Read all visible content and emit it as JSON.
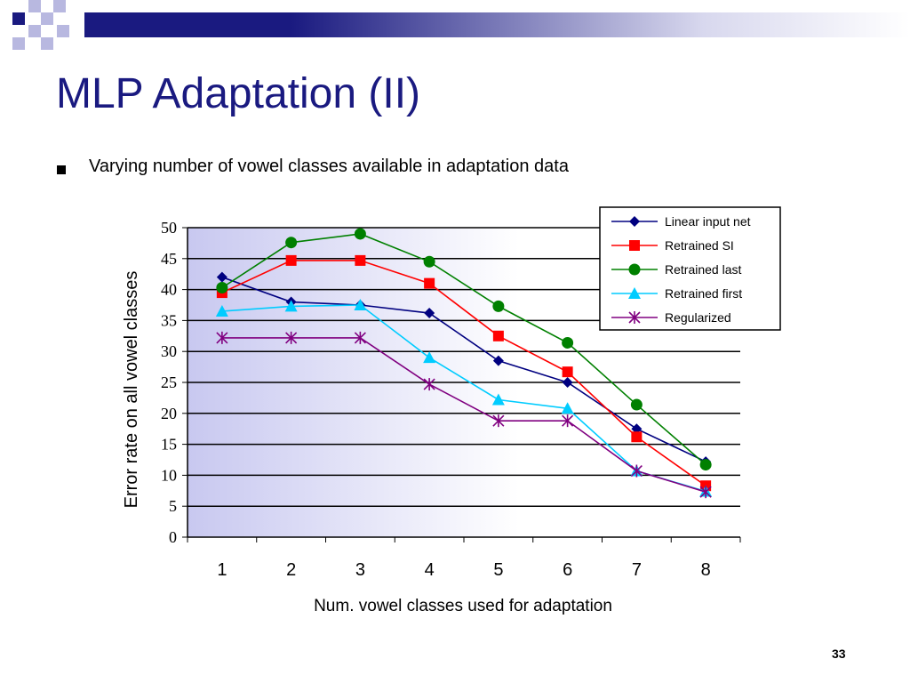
{
  "slide": {
    "title": "MLP Adaptation (II)",
    "bullet": "Varying number of vowel classes available in adaptation data",
    "page_number": "33"
  },
  "colors": {
    "title": "#1a1a80",
    "decor_navy": "#1a1a80",
    "decor_light": "#b8b8e0"
  },
  "chart_data": {
    "type": "line",
    "xlabel": "Num. vowel classes used for adaptation",
    "ylabel": "Error rate on all vowel classes",
    "categories": [
      "1",
      "2",
      "3",
      "4",
      "5",
      "6",
      "7",
      "8"
    ],
    "ylim": [
      0,
      50
    ],
    "yticks": [
      "0",
      "5",
      "10",
      "15",
      "20",
      "25",
      "30",
      "35",
      "40",
      "45",
      "50"
    ],
    "grid": true,
    "legend_position": "top-right",
    "series": [
      {
        "name": "Linear input net",
        "color": "#000080",
        "marker": "diamond",
        "values": [
          42.0,
          38.0,
          37.5,
          36.2,
          28.5,
          25.0,
          17.5,
          12.2
        ]
      },
      {
        "name": "Retrained SI",
        "color": "#ff0000",
        "marker": "square",
        "values": [
          39.5,
          44.7,
          44.7,
          41.0,
          32.5,
          26.7,
          16.2,
          8.3
        ]
      },
      {
        "name": "Retrained last",
        "color": "#008000",
        "marker": "circle",
        "values": [
          40.3,
          47.6,
          49.0,
          44.5,
          37.3,
          31.4,
          21.4,
          11.7
        ]
      },
      {
        "name": "Retrained first",
        "color": "#00ccff",
        "marker": "triangle",
        "values": [
          36.5,
          37.3,
          37.5,
          29.0,
          22.2,
          20.8,
          10.7,
          7.4
        ]
      },
      {
        "name": "Regularized",
        "color": "#800080",
        "marker": "asterisk",
        "values": [
          32.2,
          32.2,
          32.2,
          24.7,
          18.8,
          18.8,
          10.7,
          7.3
        ]
      }
    ]
  }
}
